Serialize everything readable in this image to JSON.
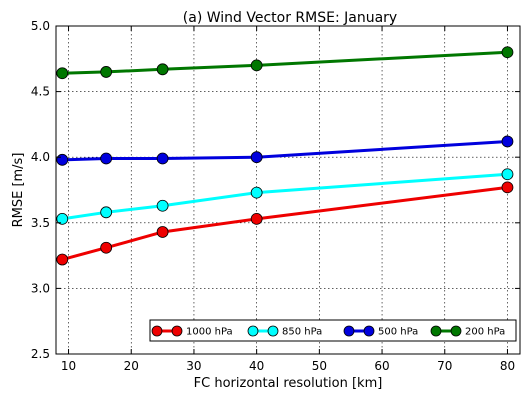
{
  "chart_data": {
    "type": "line",
    "title": "(a) Wind Vector RMSE: January",
    "xlabel": "FC horizontal resolution [km]",
    "ylabel": "RMSE [m/s]",
    "x": [
      9,
      16,
      25,
      40,
      80
    ],
    "xlim": [
      8,
      82
    ],
    "ylim": [
      2.5,
      5.0
    ],
    "xticks": [
      10,
      20,
      30,
      40,
      50,
      60,
      70,
      80
    ],
    "yticks": [
      2.5,
      3.0,
      3.5,
      4.0,
      4.5,
      5.0
    ],
    "ytick_labels": [
      "2.5",
      "3.0",
      "3.5",
      "4.0",
      "4.5",
      "5.0"
    ],
    "grid": true,
    "legend_position": "bottom-right",
    "series": [
      {
        "name": "1000 hPa",
        "color": "#ee0000",
        "values": [
          3.22,
          3.31,
          3.43,
          3.53,
          3.77
        ]
      },
      {
        "name": "850 hPa",
        "color": "#00ffff",
        "values": [
          3.53,
          3.58,
          3.63,
          3.73,
          3.87
        ]
      },
      {
        "name": "500 hPa",
        "color": "#0000dd",
        "values": [
          3.98,
          3.99,
          3.99,
          4.0,
          4.12
        ]
      },
      {
        "name": "200 hPa",
        "color": "#007700",
        "values": [
          4.64,
          4.65,
          4.67,
          4.7,
          4.8
        ]
      }
    ]
  }
}
